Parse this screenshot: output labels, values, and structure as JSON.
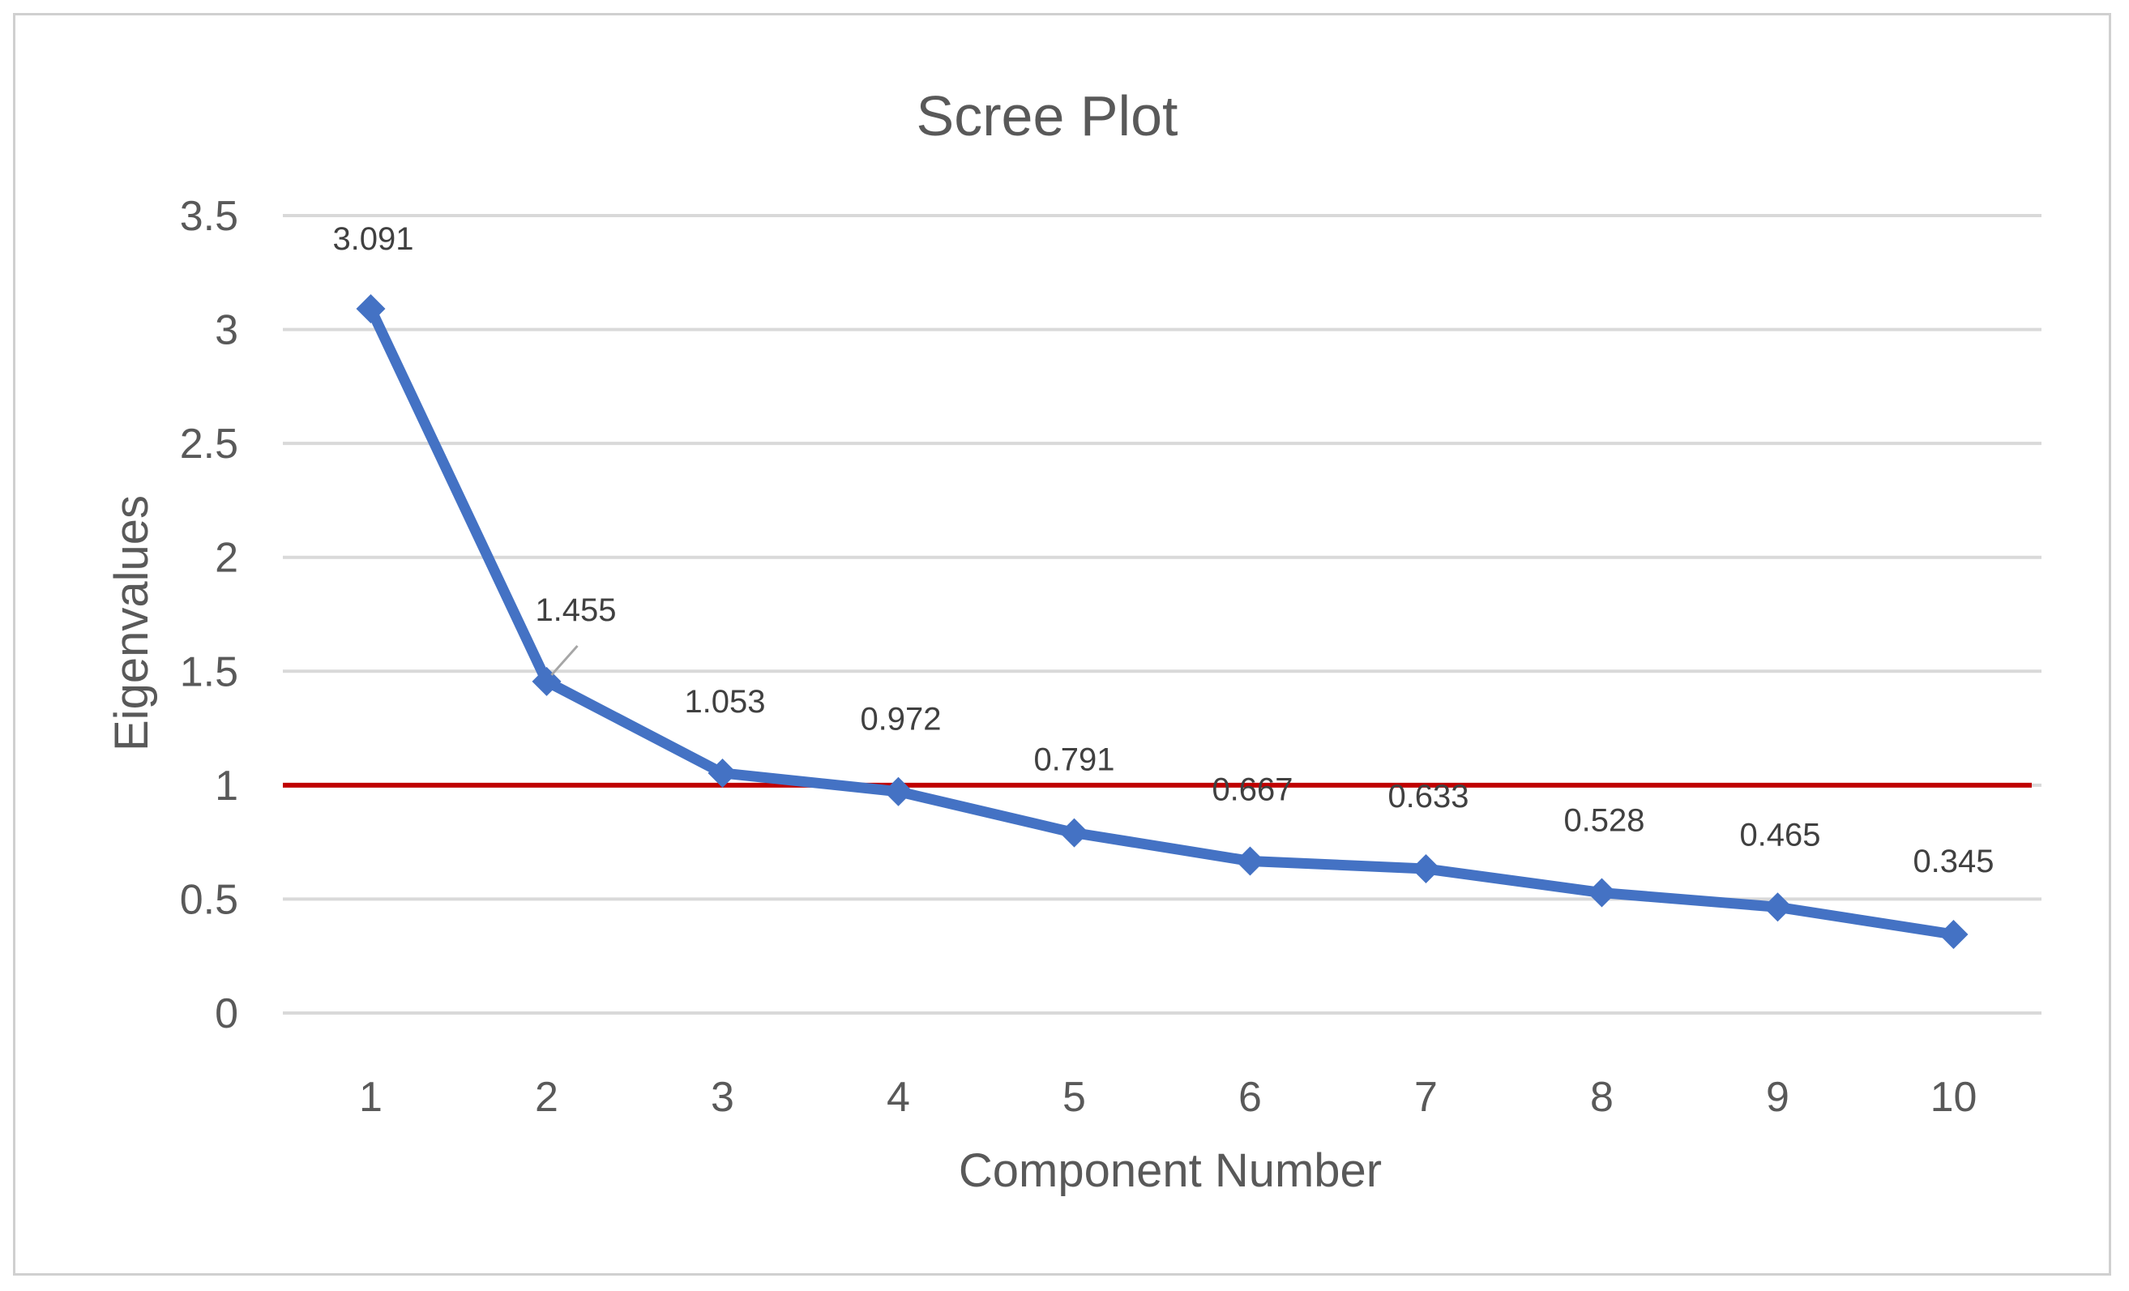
{
  "chart_data": {
    "type": "line",
    "title": "Scree Plot",
    "xlabel": "Component Number",
    "ylabel": "Eigenvalues",
    "categories": [
      "1",
      "2",
      "3",
      "4",
      "5",
      "6",
      "7",
      "8",
      "9",
      "10"
    ],
    "series": [
      {
        "values": [
          3.091,
          1.455,
          1.053,
          0.972,
          0.791,
          0.667,
          0.633,
          0.528,
          0.465,
          0.345
        ],
        "data_labels": [
          "3.091",
          "1.455",
          "1.053",
          "0.972",
          "0.791",
          "0.667",
          "0.633",
          "0.528",
          "0.465",
          "0.345"
        ],
        "color": "#4472C4",
        "marker": "diamond"
      }
    ],
    "y_ticks": [
      "0",
      "0.5",
      "1",
      "1.5",
      "2",
      "2.5",
      "3",
      "3.5"
    ],
    "ylim": [
      0,
      3.5
    ],
    "grid": true,
    "reference_line": {
      "y": 1,
      "color": "#C00000"
    },
    "gridline_color": "#d9d9d9"
  }
}
